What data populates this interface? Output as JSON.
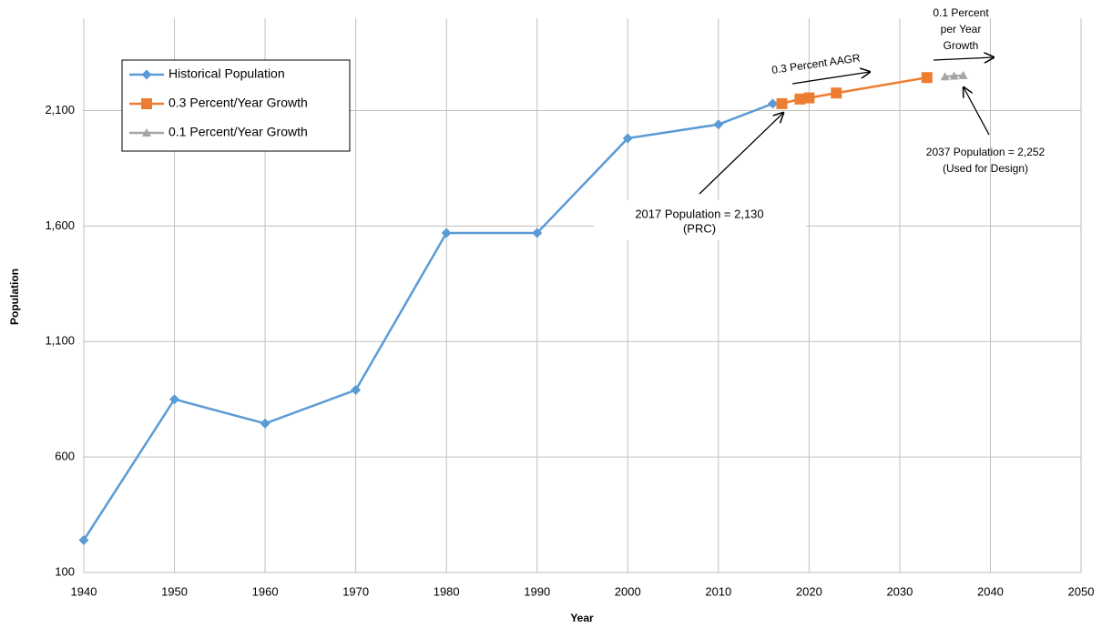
{
  "chart_data": {
    "type": "line",
    "x_label": "Year",
    "y_label": "Population",
    "xlim": [
      1940,
      2050
    ],
    "xticks": [
      1940,
      1950,
      1960,
      1970,
      1980,
      1990,
      2000,
      2010,
      2020,
      2030,
      2040,
      2050
    ],
    "ylim": [
      100,
      2500
    ],
    "yticks": [
      100,
      600,
      {
        "value": 1100,
        "label": "1,100"
      },
      {
        "value": 1600,
        "label": "1,600"
      },
      {
        "value": 2100,
        "label": "2,100"
      }
    ],
    "grid": true,
    "legend": "upper left",
    "series": [
      {
        "name": "Historical Population",
        "color": "#5b9bd5",
        "marker": "diamond",
        "x": [
          1940,
          1950,
          1960,
          1970,
          1980,
          1990,
          2000,
          2010,
          2016,
          2017
        ],
        "values": [
          240,
          850,
          745,
          890,
          1570,
          1570,
          1980,
          2040,
          2130,
          2130
        ]
      },
      {
        "name": "0.3 Percent/Year Growth",
        "color": "#ed7d31",
        "marker": "square",
        "x": [
          2017,
          2019,
          2020,
          2023,
          2033
        ],
        "values": [
          2130,
          2150,
          2155,
          2176,
          2243
        ]
      },
      {
        "name": "0.1 Percent/Year Growth",
        "color": "#a5a5a5",
        "marker": "triangle",
        "x": [
          2035,
          2036,
          2037
        ],
        "values": [
          2247,
          2250,
          2252
        ]
      }
    ],
    "annotations": [
      {
        "lines": [
          "2017  Population = 2,130",
          "(PRC)"
        ]
      },
      {
        "lines": [
          "0.3 Percent AAGR"
        ]
      },
      {
        "lines": [
          "0.1 Percent",
          "per Year",
          "Growth"
        ]
      },
      {
        "lines": [
          "2037 Population = 2,252",
          "(Used for Design)"
        ]
      }
    ]
  }
}
